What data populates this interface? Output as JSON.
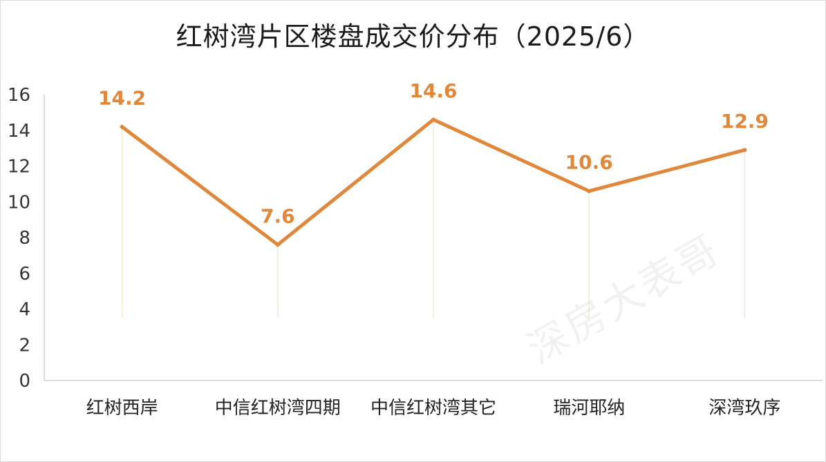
{
  "chart_data": {
    "type": "line",
    "title": "红树湾片区楼盘成交价分布（2025/6）",
    "categories": [
      "红树西岸",
      "中信红树湾四期",
      "中信红树湾其它",
      "瑞河耶纳",
      "深湾玖序"
    ],
    "series": [
      {
        "values": [
          14.2,
          7.6,
          14.6,
          10.6,
          12.9
        ],
        "color": "#e0873a"
      }
    ],
    "data_labels": [
      "14.2",
      "7.6",
      "14.6",
      "10.6",
      "12.9"
    ],
    "y_ticks": [
      "0",
      "2",
      "4",
      "6",
      "8",
      "10",
      "12",
      "14",
      "16"
    ],
    "ylim": [
      0,
      16
    ],
    "xlabel": "",
    "ylabel": "",
    "grid": false,
    "drop_lines": true,
    "legend": "none",
    "colors": {
      "line": "#e0873a",
      "drop_line": "#efe6c8",
      "axis": "#d0d0d0"
    }
  },
  "watermark": "深房大表哥"
}
